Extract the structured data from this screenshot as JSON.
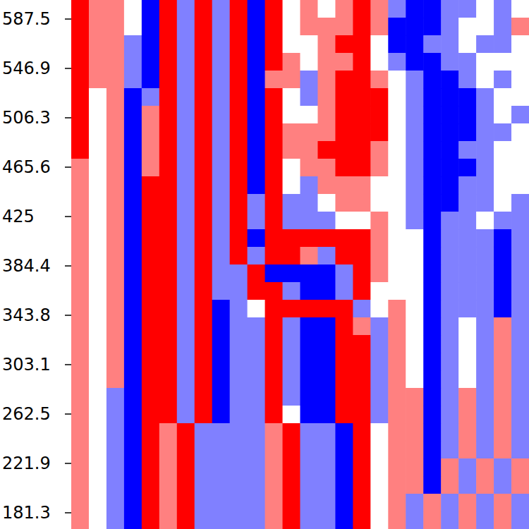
{
  "chart_data": {
    "type": "heatmap",
    "ylim": [
      167.9,
      603.2
    ],
    "yticks": [
      {
        "value": 181.25,
        "label": "181.3"
      },
      {
        "value": 221.875,
        "label": "221.9"
      },
      262.5,
      {
        "value": 303.125,
        "label": "303.1"
      },
      {
        "value": 343.75,
        "label": "343.8"
      },
      {
        "value": 384.375,
        "label": "384.4"
      },
      425,
      {
        "value": 465.625,
        "label": "465.6"
      },
      {
        "value": 506.25,
        "label": "506.3"
      },
      {
        "value": 546.875,
        "label": "546.9"
      },
      587.5
    ],
    "tick_labels": "y",
    "grid": false,
    "value_range": [
      -2,
      2
    ],
    "cells": [
      [
        2,
        1,
        1,
        0,
        -2,
        2,
        -1,
        2,
        -1,
        2,
        -2,
        2,
        0,
        1,
        0,
        1,
        2,
        1,
        -1,
        -2,
        -2,
        -1,
        -1,
        0,
        -1,
        0
      ],
      [
        2,
        1,
        1,
        0,
        -2,
        2,
        -1,
        2,
        -1,
        2,
        -2,
        2,
        0,
        1,
        1,
        1,
        2,
        1,
        -2,
        -2,
        -2,
        -1,
        0,
        0,
        -1,
        1
      ],
      [
        2,
        1,
        1,
        -1,
        -2,
        2,
        -1,
        2,
        -1,
        2,
        -2,
        2,
        0,
        0,
        1,
        2,
        2,
        0,
        -2,
        -2,
        -1,
        -1,
        0,
        -1,
        -1,
        0
      ],
      [
        2,
        1,
        1,
        -1,
        -2,
        2,
        -1,
        2,
        -1,
        2,
        -2,
        2,
        1,
        0,
        1,
        1,
        2,
        0,
        -1,
        -2,
        -2,
        -1,
        -1,
        0,
        0,
        0
      ],
      [
        2,
        1,
        1,
        -1,
        -2,
        2,
        -1,
        2,
        -1,
        2,
        -2,
        1,
        1,
        -1,
        1,
        2,
        2,
        1,
        0,
        -1,
        -2,
        -2,
        -1,
        0,
        -1,
        0
      ],
      [
        2,
        0,
        1,
        -2,
        -1,
        2,
        -1,
        2,
        -1,
        2,
        -2,
        2,
        0,
        -1,
        1,
        2,
        2,
        2,
        0,
        -1,
        -2,
        -2,
        -2,
        -1,
        0,
        0
      ],
      [
        2,
        0,
        1,
        -2,
        1,
        2,
        -1,
        2,
        -1,
        2,
        -2,
        2,
        0,
        0,
        1,
        2,
        2,
        2,
        0,
        -1,
        -2,
        -2,
        -2,
        -1,
        0,
        -1
      ],
      [
        2,
        0,
        1,
        -2,
        1,
        2,
        -1,
        2,
        -1,
        2,
        -2,
        2,
        1,
        1,
        1,
        2,
        2,
        2,
        0,
        -1,
        -2,
        -2,
        -2,
        -1,
        -1,
        0
      ],
      [
        2,
        0,
        1,
        -2,
        1,
        2,
        -1,
        2,
        -1,
        2,
        -2,
        2,
        1,
        1,
        2,
        2,
        2,
        1,
        0,
        -1,
        -2,
        -2,
        -1,
        -1,
        0,
        0
      ],
      [
        1,
        0,
        1,
        -2,
        1,
        2,
        -1,
        2,
        -1,
        2,
        -2,
        2,
        0,
        1,
        1,
        2,
        2,
        1,
        0,
        -1,
        -2,
        -2,
        -2,
        -1,
        0,
        0
      ],
      [
        1,
        0,
        1,
        -2,
        2,
        2,
        -1,
        2,
        -1,
        2,
        -2,
        2,
        0,
        -1,
        1,
        1,
        1,
        0,
        0,
        -1,
        -2,
        -2,
        -1,
        -1,
        0,
        0
      ],
      [
        1,
        0,
        1,
        -2,
        2,
        2,
        -1,
        2,
        -1,
        2,
        -1,
        2,
        -1,
        -1,
        0,
        1,
        1,
        0,
        0,
        -1,
        -2,
        -2,
        -1,
        -1,
        0,
        -1
      ],
      [
        1,
        0,
        1,
        -2,
        2,
        2,
        -1,
        2,
        -1,
        2,
        -1,
        2,
        -1,
        -1,
        -1,
        0,
        0,
        1,
        0,
        -1,
        -2,
        -1,
        -1,
        0,
        -1,
        -1
      ],
      [
        1,
        0,
        1,
        -2,
        2,
        2,
        -1,
        2,
        -1,
        2,
        -2,
        2,
        2,
        2,
        2,
        2,
        2,
        1,
        0,
        0,
        -2,
        -1,
        -1,
        -1,
        -2,
        -1
      ],
      [
        1,
        0,
        1,
        -2,
        2,
        2,
        -1,
        2,
        -1,
        2,
        -1,
        2,
        2,
        1,
        -1,
        2,
        2,
        1,
        0,
        0,
        -2,
        -1,
        -1,
        -1,
        -2,
        -1
      ],
      [
        1,
        0,
        1,
        -2,
        2,
        2,
        -1,
        2,
        -1,
        -1,
        2,
        -2,
        -2,
        -2,
        -2,
        -1,
        2,
        1,
        0,
        0,
        -2,
        -1,
        -1,
        -1,
        -2,
        -1
      ],
      [
        1,
        0,
        1,
        -2,
        2,
        2,
        -1,
        2,
        -1,
        -1,
        2,
        2,
        -1,
        -2,
        -2,
        -1,
        2,
        0,
        0,
        0,
        -2,
        -1,
        -1,
        -1,
        -2,
        -1
      ],
      [
        1,
        0,
        1,
        -2,
        2,
        2,
        -1,
        2,
        -2,
        -1,
        0,
        2,
        2,
        2,
        2,
        2,
        -1,
        0,
        1,
        0,
        -2,
        -1,
        -1,
        -1,
        -2,
        -1
      ],
      [
        1,
        0,
        1,
        -2,
        2,
        2,
        -1,
        2,
        -2,
        -1,
        -1,
        2,
        -1,
        -2,
        -2,
        2,
        1,
        -1,
        1,
        0,
        -2,
        -1,
        0,
        -1,
        1,
        -1
      ],
      [
        1,
        0,
        1,
        -2,
        2,
        2,
        -1,
        2,
        -2,
        -1,
        -1,
        2,
        -1,
        -2,
        -2,
        2,
        2,
        -1,
        1,
        0,
        -2,
        -1,
        0,
        -1,
        1,
        -1
      ],
      [
        1,
        0,
        1,
        -2,
        2,
        2,
        -1,
        2,
        -2,
        -1,
        -1,
        2,
        -1,
        -2,
        -2,
        2,
        2,
        -1,
        1,
        0,
        -2,
        -1,
        0,
        -1,
        1,
        -1
      ],
      [
        1,
        0,
        1,
        -2,
        2,
        2,
        -1,
        2,
        -2,
        -1,
        -1,
        2,
        -1,
        -2,
        -2,
        2,
        2,
        -1,
        1,
        0,
        -2,
        -1,
        0,
        -1,
        1,
        -1
      ],
      [
        1,
        0,
        -1,
        -2,
        2,
        2,
        -1,
        2,
        -2,
        -1,
        -1,
        2,
        -1,
        -2,
        -2,
        2,
        2,
        -1,
        1,
        1,
        -2,
        -1,
        1,
        -1,
        1,
        -1
      ],
      [
        1,
        0,
        -1,
        -2,
        2,
        2,
        -1,
        2,
        -2,
        -1,
        -1,
        2,
        0,
        -2,
        -2,
        2,
        2,
        -1,
        1,
        1,
        -2,
        -1,
        1,
        -1,
        1,
        -1
      ],
      [
        1,
        0,
        -1,
        -2,
        2,
        1,
        2,
        -1,
        -1,
        -1,
        -1,
        1,
        2,
        -1,
        -1,
        -2,
        2,
        0,
        1,
        1,
        -2,
        -1,
        1,
        -1,
        1,
        -1
      ],
      [
        1,
        0,
        -1,
        -2,
        2,
        1,
        2,
        -1,
        -1,
        -1,
        -1,
        1,
        2,
        -1,
        -1,
        -2,
        2,
        0,
        1,
        1,
        -2,
        -1,
        1,
        -1,
        1,
        -1
      ],
      [
        1,
        0,
        -1,
        -2,
        2,
        1,
        2,
        -1,
        -1,
        -1,
        -1,
        1,
        2,
        -1,
        -1,
        -2,
        2,
        0,
        1,
        1,
        -2,
        1,
        -1,
        1,
        -1,
        1
      ],
      [
        1,
        0,
        -1,
        -2,
        2,
        1,
        2,
        -1,
        -1,
        -1,
        -1,
        1,
        2,
        -1,
        -1,
        -2,
        2,
        0,
        1,
        1,
        -2,
        1,
        -1,
        1,
        -1,
        1
      ],
      [
        1,
        0,
        -1,
        -2,
        2,
        1,
        2,
        -1,
        -1,
        -1,
        -1,
        1,
        2,
        -1,
        -1,
        -2,
        2,
        0,
        1,
        -1,
        1,
        -1,
        1,
        -1,
        1,
        -1
      ],
      [
        1,
        0,
        -1,
        -2,
        2,
        1,
        2,
        -1,
        -1,
        -1,
        -1,
        1,
        2,
        -1,
        -1,
        -2,
        2,
        0,
        1,
        -1,
        1,
        -1,
        1,
        -1,
        1,
        -1
      ]
    ]
  }
}
